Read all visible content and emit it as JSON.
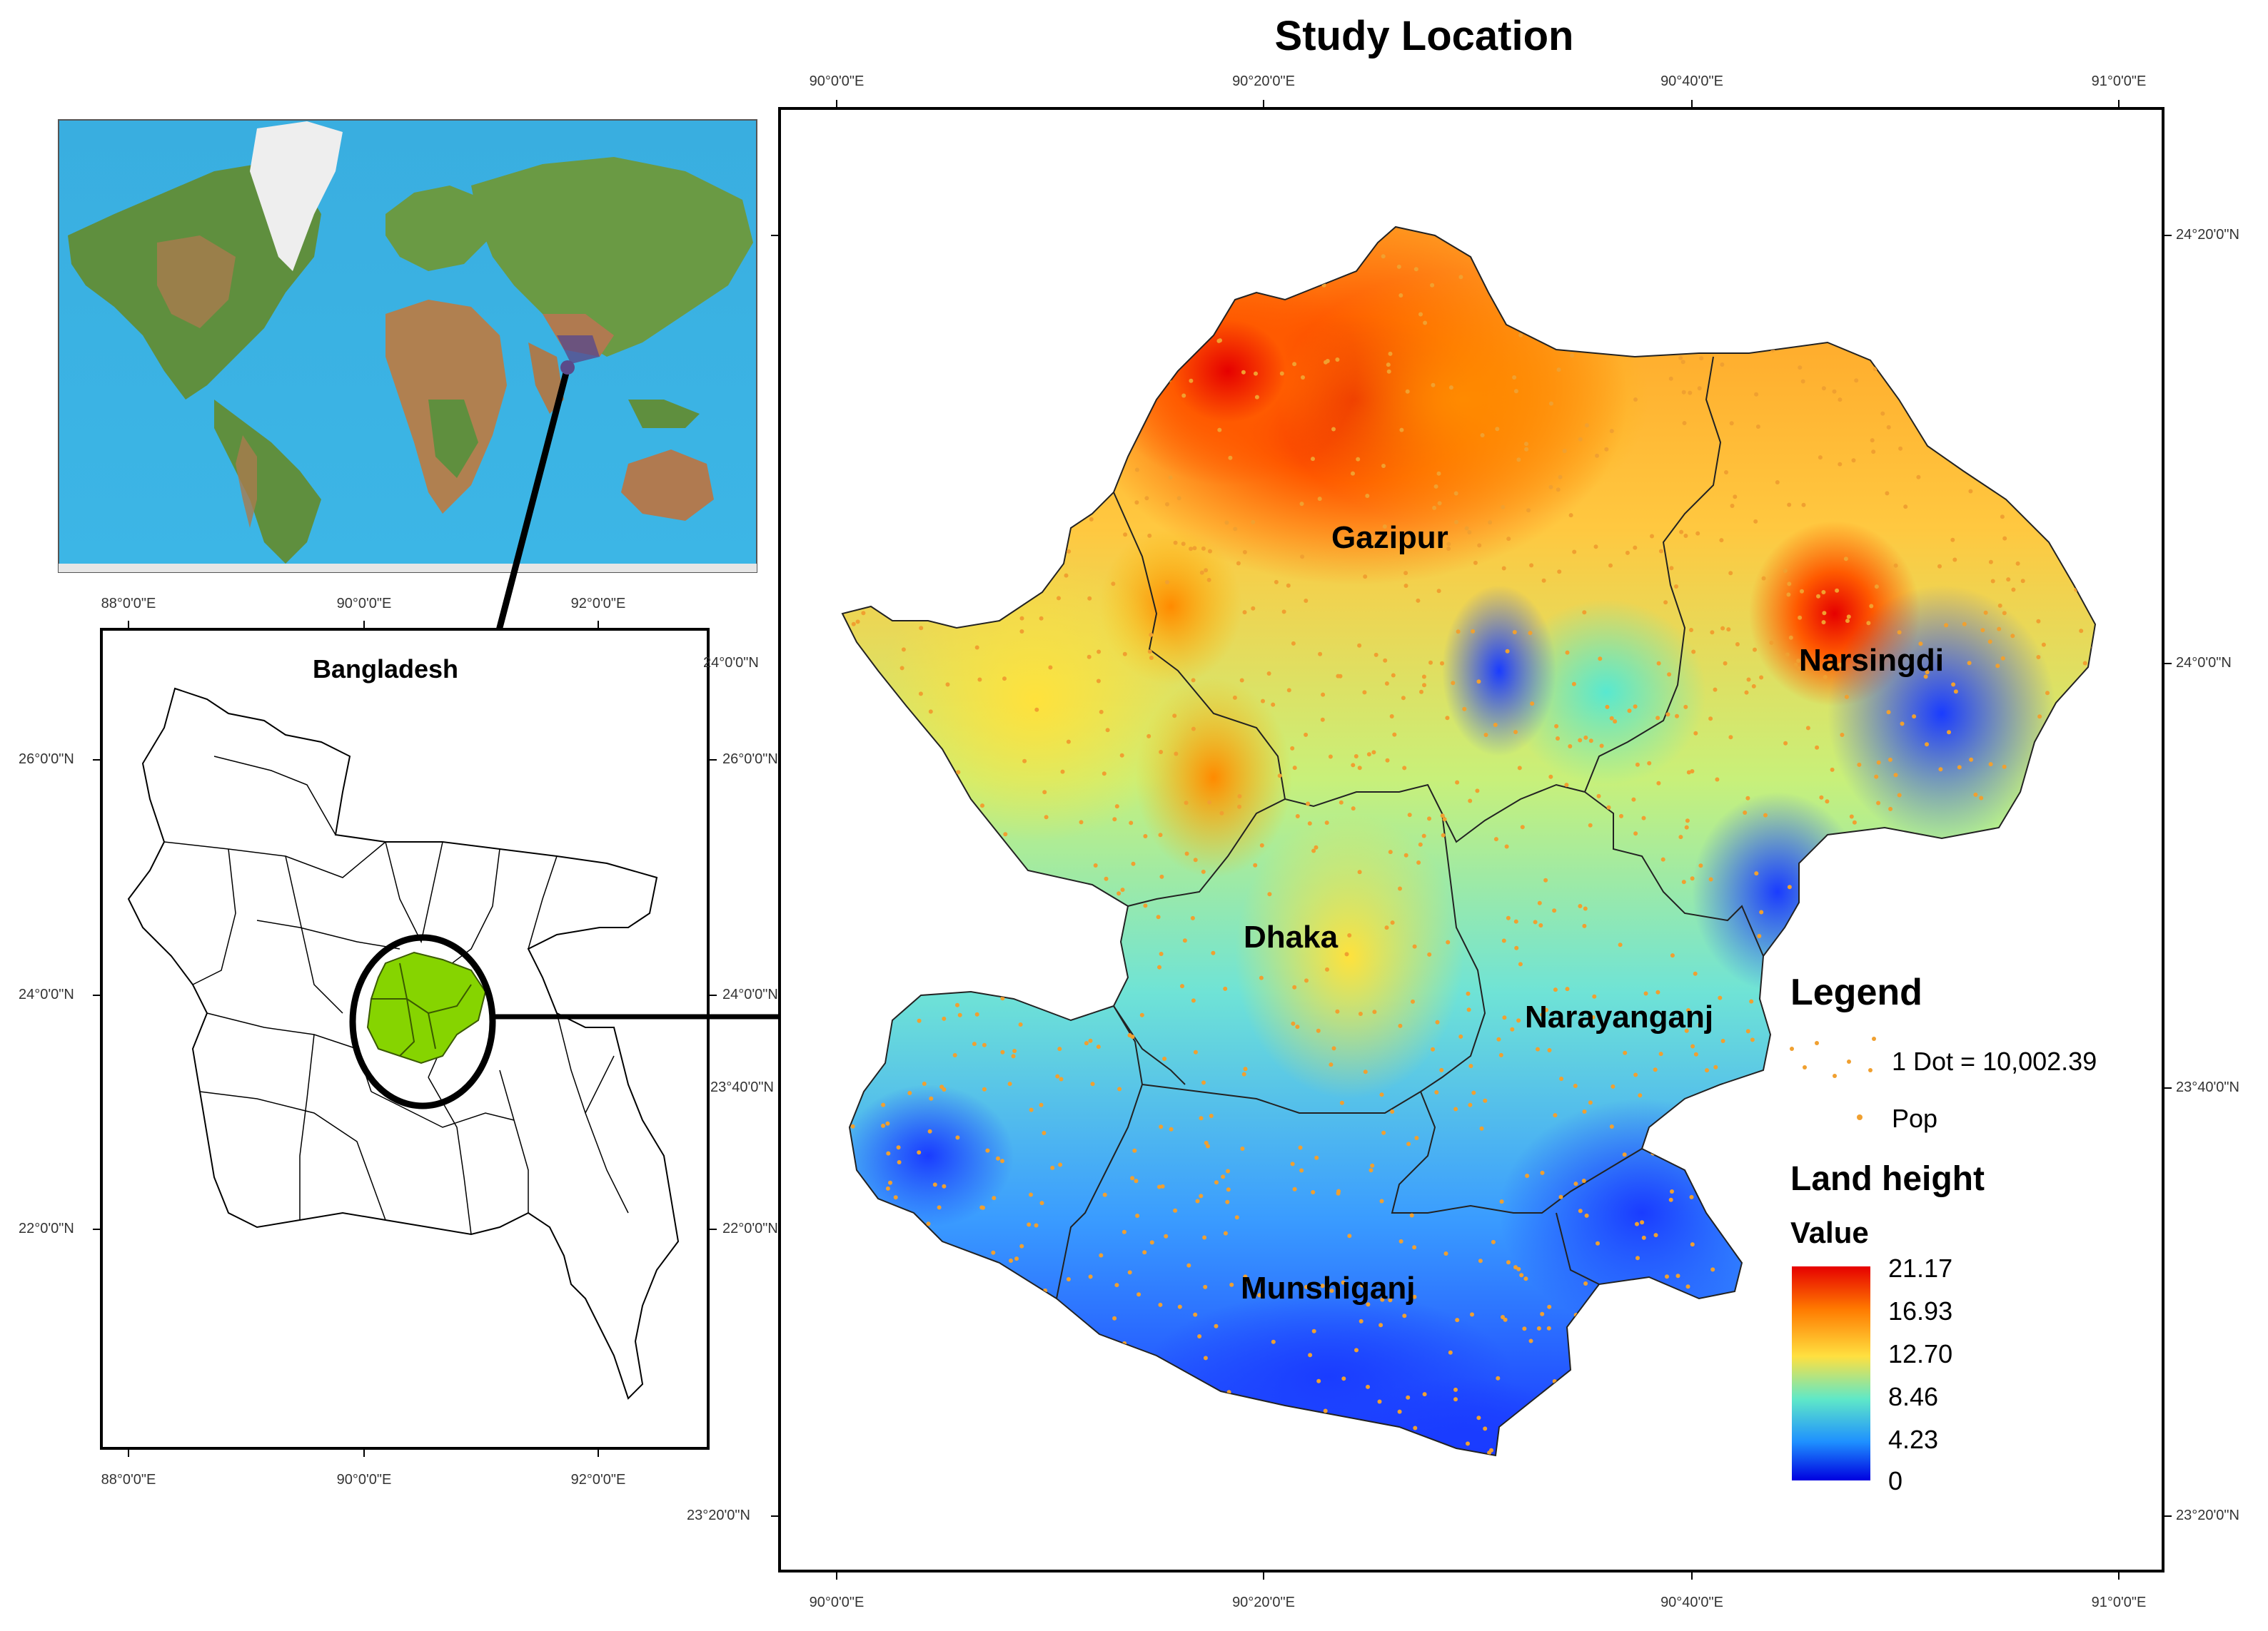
{
  "title": "Study Location",
  "world_map": {
    "description_colors": {
      "ocean": "#3eb4e4",
      "land_low": "#5e8f3c",
      "land_high": "#b07a50",
      "ice": "#ececec"
    }
  },
  "inset": {
    "country_label": "Bangladesh",
    "x_ticks": [
      "88°0'0\"E",
      "90°0'0\"E",
      "92°0'0\"E"
    ],
    "y_ticks_left": [
      "26°0'0\"N",
      "24°0'0\"N",
      "22°0'0\"N"
    ],
    "y_ticks_right": [
      "26°0'0\"N",
      "24°0'0\"N",
      "22°0'0\"N"
    ],
    "right_partial_ticks": [
      "24°0'0\"N",
      "23°40'0\"N"
    ],
    "highlight_color": "#86d400"
  },
  "main_map": {
    "x_ticks": [
      "90°0'0\"E",
      "90°20'0\"E",
      "90°40'0\"E",
      "91°0'0\"E"
    ],
    "y_ticks_right": [
      "24°20'0\"N",
      "24°0'0\"N",
      "23°40'0\"N",
      "23°20'0\"N"
    ],
    "y_tick_left_lowest": "23°20'0\"N",
    "districts": [
      "Gazipur",
      "Narsingdi",
      "Dhaka",
      "Narayanganj",
      "Munshiganj"
    ],
    "dot_color": "#f0a030"
  },
  "legend": {
    "title": "Legend",
    "dot_text": "1 Dot = 10,002.39",
    "pop_label": "Pop",
    "land_height_title": "Land height",
    "value_title": "Value",
    "values": [
      "21.17",
      "16.93",
      "12.70",
      "8.46",
      "4.23",
      "0"
    ],
    "gradient_colors": [
      "#e60000",
      "#ff7a00",
      "#ffe040",
      "#5fe8c8",
      "#1e90ff",
      "#0000e0"
    ]
  }
}
